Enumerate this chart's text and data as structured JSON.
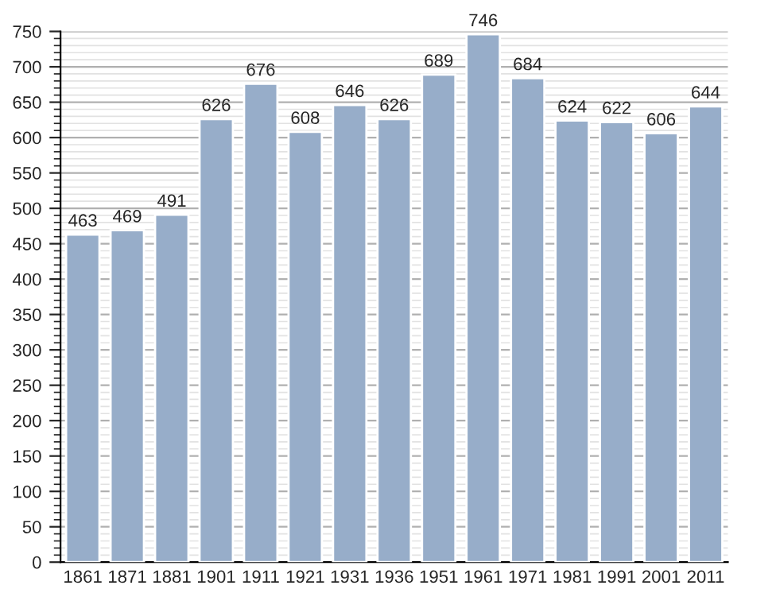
{
  "chart_data": {
    "type": "bar",
    "categories": [
      "1861",
      "1871",
      "1881",
      "1901",
      "1911",
      "1921",
      "1931",
      "1936",
      "1951",
      "1961",
      "1971",
      "1981",
      "1991",
      "2001",
      "2011"
    ],
    "values": [
      463,
      469,
      491,
      626,
      676,
      608,
      646,
      626,
      689,
      746,
      684,
      624,
      622,
      606,
      644
    ],
    "color": "#97adc9",
    "ylim": [
      0,
      750
    ],
    "yticks": [
      0,
      50,
      100,
      150,
      200,
      250,
      300,
      350,
      400,
      450,
      500,
      550,
      600,
      650,
      700,
      750
    ],
    "grid": "y",
    "data_labels": true
  }
}
